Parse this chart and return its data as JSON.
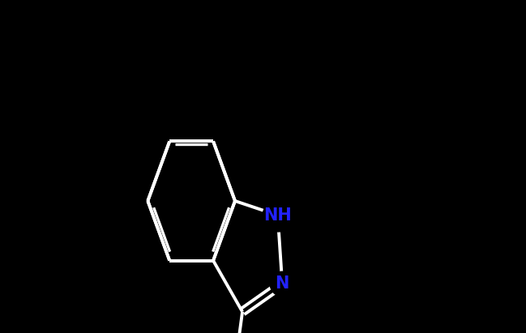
{
  "background_color": "#000000",
  "bond_color": "#ffffff",
  "N_color": "#2222ff",
  "O_color": "#ff2200",
  "figsize": [
    6.49,
    4.11
  ],
  "dpi": 100
}
